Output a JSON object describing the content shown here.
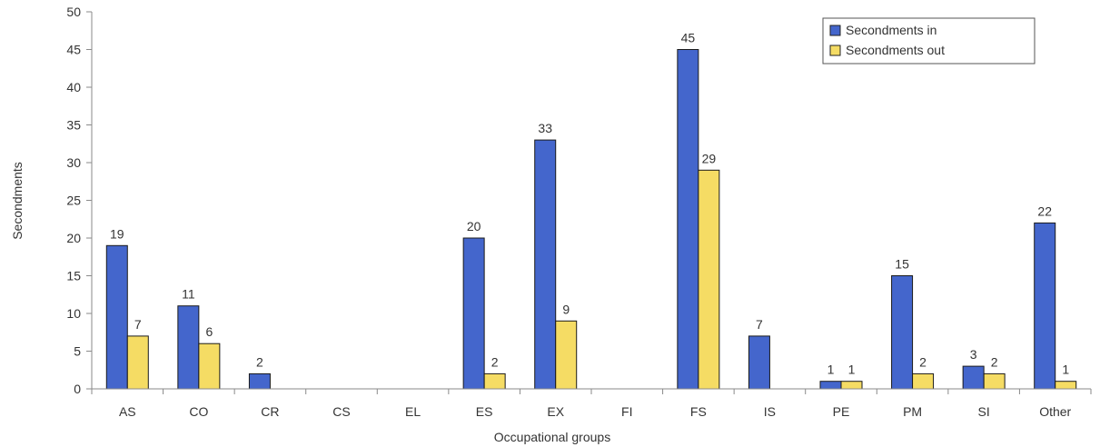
{
  "chart_data": {
    "type": "bar",
    "xlabel": "Occupational groups",
    "ylabel": "Secondments",
    "ylim": [
      0,
      50
    ],
    "yticks": [
      0,
      5,
      10,
      15,
      20,
      25,
      30,
      35,
      40,
      45,
      50
    ],
    "grid": false,
    "legend_position": "top-right",
    "categories": [
      "AS",
      "CO",
      "CR",
      "CS",
      "EL",
      "ES",
      "EX",
      "FI",
      "FS",
      "IS",
      "PE",
      "PM",
      "SI",
      "Other"
    ],
    "series": [
      {
        "name": "Secondments in",
        "color": "#4466cc",
        "values": [
          19,
          11,
          2,
          null,
          null,
          20,
          33,
          null,
          45,
          7,
          1,
          15,
          3,
          22
        ]
      },
      {
        "name": "Secondments out",
        "color": "#f5dc64",
        "values": [
          7,
          6,
          null,
          null,
          null,
          2,
          9,
          null,
          29,
          null,
          1,
          2,
          2,
          1
        ]
      }
    ]
  }
}
